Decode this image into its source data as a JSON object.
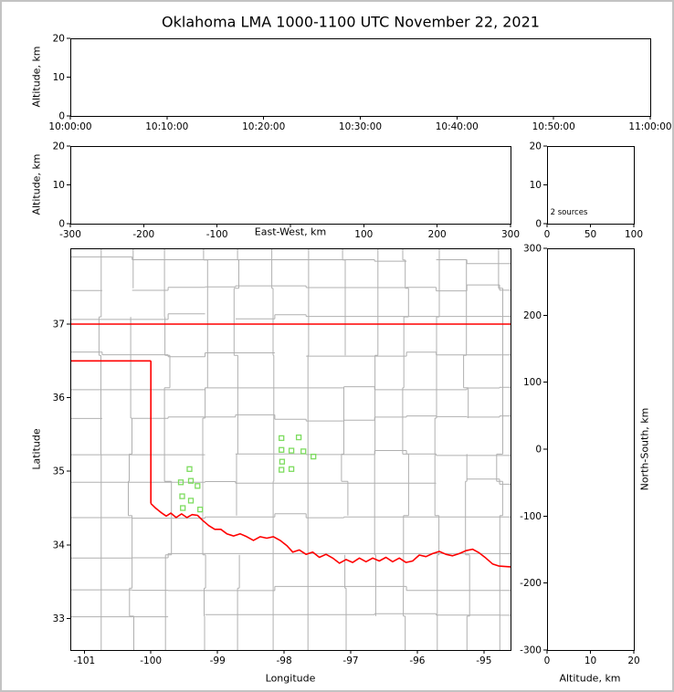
{
  "title": "Oklahoma LMA 1000-1100 UTC November 22, 2021",
  "colors": {
    "background": "#ffffff",
    "frame_border": "#c3c3c3",
    "panel_border": "#000000",
    "county_line": "#b0b0b0",
    "state_border": "#ff0000",
    "station": "#7ddc5f",
    "text": "#000000"
  },
  "chart_data": [
    {
      "id": "time_height",
      "type": "scatter",
      "xlabel": "",
      "ylabel": "Altitude, km",
      "xtick_labels": [
        "10:00:00",
        "10:10:00",
        "10:20:00",
        "10:30:00",
        "10:40:00",
        "10:50:00",
        "11:00:00"
      ],
      "ylim": [
        0,
        20
      ],
      "yticks": [
        0,
        10,
        20
      ],
      "points": []
    },
    {
      "id": "ew_height",
      "type": "scatter",
      "xlabel": "East-West, km",
      "ylabel": "Altitude, km",
      "xlim": [
        -300,
        300
      ],
      "xticks": [
        -300,
        -200,
        -100,
        0,
        100,
        200,
        300
      ],
      "xtick_labels": [
        "-300",
        "-200",
        "-100",
        "",
        "100",
        "200",
        "300"
      ],
      "ylim": [
        0,
        20
      ],
      "yticks": [
        0,
        10,
        20
      ],
      "points": []
    },
    {
      "id": "source_histogram",
      "type": "scatter",
      "annotation": "2 sources",
      "xlim": [
        0,
        100
      ],
      "xticks": [
        0,
        50,
        100
      ],
      "ylim": [
        0,
        20
      ],
      "yticks": [
        0,
        10,
        20
      ],
      "points": []
    },
    {
      "id": "plan_view",
      "type": "scatter",
      "xlabel": "Longitude",
      "ylabel": "Latitude",
      "xlim": [
        -101.21,
        -94.6
      ],
      "xticks": [
        -101,
        -100,
        -99,
        -98,
        -97,
        -96,
        -95
      ],
      "ylim": [
        32.57,
        38.03
      ],
      "yticks": [
        33,
        34,
        35,
        36,
        37
      ],
      "station_marker": "open-square",
      "stations": [
        [
          -99.42,
          35.03
        ],
        [
          -99.4,
          34.87
        ],
        [
          -99.55,
          34.85
        ],
        [
          -99.3,
          34.8
        ],
        [
          -99.53,
          34.66
        ],
        [
          -99.4,
          34.6
        ],
        [
          -99.52,
          34.5
        ],
        [
          -99.26,
          34.48
        ],
        [
          -98.04,
          35.45
        ],
        [
          -97.78,
          35.46
        ],
        [
          -98.04,
          35.29
        ],
        [
          -97.89,
          35.28
        ],
        [
          -97.71,
          35.27
        ],
        [
          -97.56,
          35.2
        ],
        [
          -98.03,
          35.13
        ],
        [
          -97.89,
          35.03
        ],
        [
          -98.04,
          35.02
        ]
      ],
      "state_border_segments": [
        [
          [
            -101.21,
            37.0
          ],
          [
            -94.6,
            37.0
          ]
        ],
        [
          [
            -101.21,
            36.5
          ],
          [
            -100.0,
            36.5
          ]
        ],
        [
          [
            -100.0,
            36.5
          ],
          [
            -100.0,
            34.56
          ]
        ],
        [
          [
            -100.0,
            34.56
          ],
          [
            -99.93,
            34.5
          ],
          [
            -99.85,
            34.44
          ],
          [
            -99.77,
            34.39
          ],
          [
            -99.7,
            34.43
          ],
          [
            -99.62,
            34.37
          ],
          [
            -99.54,
            34.42
          ],
          [
            -99.46,
            34.37
          ],
          [
            -99.38,
            34.41
          ],
          [
            -99.3,
            34.4
          ],
          [
            -99.22,
            34.33
          ],
          [
            -99.13,
            34.26
          ],
          [
            -99.04,
            34.21
          ],
          [
            -98.95,
            34.21
          ],
          [
            -98.86,
            34.15
          ],
          [
            -98.76,
            34.12
          ],
          [
            -98.66,
            34.15
          ],
          [
            -98.56,
            34.11
          ],
          [
            -98.46,
            34.06
          ],
          [
            -98.36,
            34.11
          ],
          [
            -98.26,
            34.09
          ],
          [
            -98.16,
            34.11
          ],
          [
            -98.06,
            34.06
          ],
          [
            -97.96,
            33.99
          ],
          [
            -97.87,
            33.9
          ],
          [
            -97.77,
            33.93
          ],
          [
            -97.67,
            33.87
          ],
          [
            -97.57,
            33.9
          ],
          [
            -97.47,
            33.83
          ],
          [
            -97.37,
            33.87
          ],
          [
            -97.27,
            33.82
          ],
          [
            -97.17,
            33.75
          ],
          [
            -97.07,
            33.8
          ],
          [
            -96.97,
            33.76
          ],
          [
            -96.87,
            33.82
          ],
          [
            -96.77,
            33.77
          ],
          [
            -96.67,
            33.82
          ],
          [
            -96.57,
            33.78
          ],
          [
            -96.47,
            33.83
          ],
          [
            -96.37,
            33.77
          ],
          [
            -96.27,
            33.82
          ],
          [
            -96.17,
            33.76
          ],
          [
            -96.07,
            33.78
          ],
          [
            -95.97,
            33.86
          ],
          [
            -95.87,
            33.84
          ],
          [
            -95.77,
            33.88
          ],
          [
            -95.67,
            33.91
          ],
          [
            -95.57,
            33.87
          ],
          [
            -95.47,
            33.85
          ],
          [
            -95.37,
            33.88
          ],
          [
            -95.27,
            33.92
          ],
          [
            -95.17,
            33.94
          ],
          [
            -95.07,
            33.89
          ],
          [
            -94.97,
            33.82
          ],
          [
            -94.87,
            33.74
          ],
          [
            -94.77,
            33.71
          ],
          [
            -94.6,
            33.7
          ]
        ]
      ]
    },
    {
      "id": "ns_height",
      "type": "scatter",
      "xlabel": "Altitude, km",
      "ylabel": "North-South, km",
      "xlim": [
        0,
        20
      ],
      "xticks": [
        0,
        10,
        20
      ],
      "ylim": [
        -300,
        300
      ],
      "yticks": [
        300,
        200,
        100,
        0,
        -100,
        -200,
        -300
      ],
      "points": []
    }
  ]
}
